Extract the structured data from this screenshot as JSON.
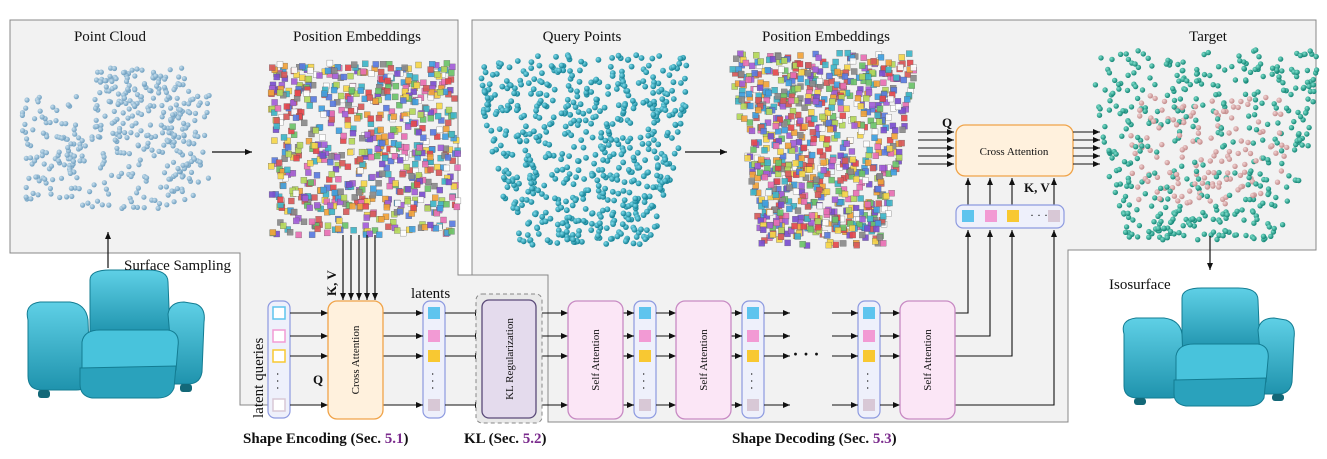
{
  "labels": {
    "point_cloud": "Point Cloud",
    "position_embeddings_1": "Position Embeddings",
    "query_points": "Query Points",
    "position_embeddings_2": "Position Embeddings",
    "target": "Target",
    "surface_sampling": "Surface Sampling",
    "isosurface": "Isosurface",
    "latent_queries": "latent queries",
    "latents": "latents",
    "q_enc": "Q",
    "kv_enc": "K, V",
    "q_dec": "Q",
    "kv_dec": "K, V",
    "ellipsis": "·  ·  ·"
  },
  "blocks": {
    "cross_attention_enc": "Cross Attention",
    "kl_regularization": "KL Regularization",
    "self_attention_1": "Self Attention",
    "self_attention_2": "Self Attention",
    "self_attention_3": "Self Attention",
    "cross_attention_dec": "Cross Attention"
  },
  "captions": {
    "encoding_text": "Shape Encoding (Sec. ",
    "encoding_ref": "5.1",
    "kl_text": "KL (Sec. ",
    "kl_ref": "5.2",
    "decoding_text": "Shape Decoding (Sec. ",
    "decoding_ref": "5.3",
    "close": ")"
  },
  "colors": {
    "point_cloud": "#8fb8d4",
    "query_points": "#1e9fb5",
    "target_points": "#23a894",
    "target_inside": "#d8a5a5",
    "chair": "#3bb5cf",
    "token_1": "#5ec4ee",
    "token_2": "#f29ad4",
    "token_3": "#f8c832",
    "token_4": "#d8c8d6",
    "cross_attention_fill": "#fff1dd",
    "cross_attention_stroke": "#f0a44a",
    "self_attention_fill": "#fbe6f6",
    "self_attention_stroke": "#c88bc4",
    "kl_fill": "#e4dbed",
    "kl_stroke": "#5a4a78",
    "token_column_fill": "#eef0fb",
    "token_column_stroke": "#8d9ae0",
    "panel_fill": "#f2f2f2",
    "section_ref": "#7a2a8c"
  }
}
